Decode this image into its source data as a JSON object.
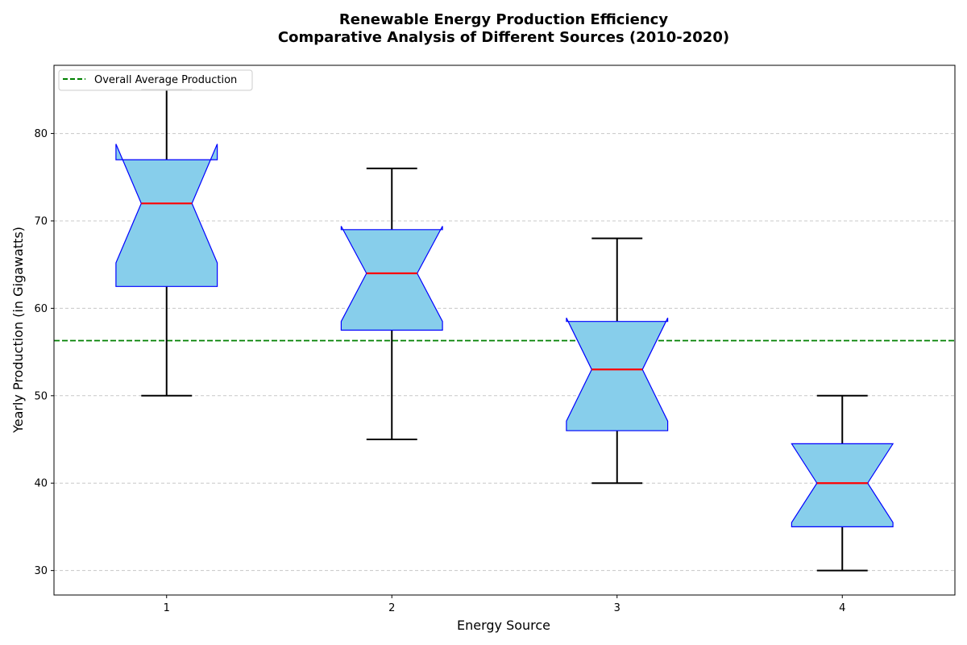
{
  "chart_data": {
    "type": "boxplot",
    "title_line1": "Renewable Energy Production Efficiency",
    "title_line2": "Comparative Analysis of Different Sources (2010-2020)",
    "xlabel": "Energy Source",
    "ylabel": "Yearly Production (in Gigawatts)",
    "ylim": [
      27.2,
      87.8
    ],
    "yticks": [
      30,
      40,
      50,
      60,
      70,
      80
    ],
    "grid": "y",
    "categories": [
      "1",
      "2",
      "3",
      "4"
    ],
    "boxes": [
      {
        "category": "1",
        "whisker_low": 50,
        "q1": 62.5,
        "median": 72,
        "q3": 77,
        "whisker_high": 85,
        "notch_low": 65.2,
        "notch_high": 78.8
      },
      {
        "category": "2",
        "whisker_low": 45,
        "q1": 57.5,
        "median": 64,
        "q3": 69,
        "whisker_high": 76,
        "notch_low": 58.5,
        "notch_high": 69.4
      },
      {
        "category": "3",
        "whisker_low": 40,
        "q1": 46,
        "median": 53,
        "q3": 58.5,
        "whisker_high": 68,
        "notch_low": 47.1,
        "notch_high": 58.9
      },
      {
        "category": "4",
        "whisker_low": 30,
        "q1": 35,
        "median": 40,
        "q3": 44.5,
        "whisker_high": 50,
        "notch_low": 35.5,
        "notch_high": 44.5
      }
    ],
    "reference_line": {
      "label": "Overall Average Production",
      "value": 56.3
    },
    "legend_position": "upper-left",
    "colors": {
      "box_fill": "#87CEEB",
      "box_edge": "#0000FF",
      "median": "#FF0000",
      "whisker": "#000000",
      "reference_line": "#008000",
      "grid": "#c8c8c8"
    }
  }
}
